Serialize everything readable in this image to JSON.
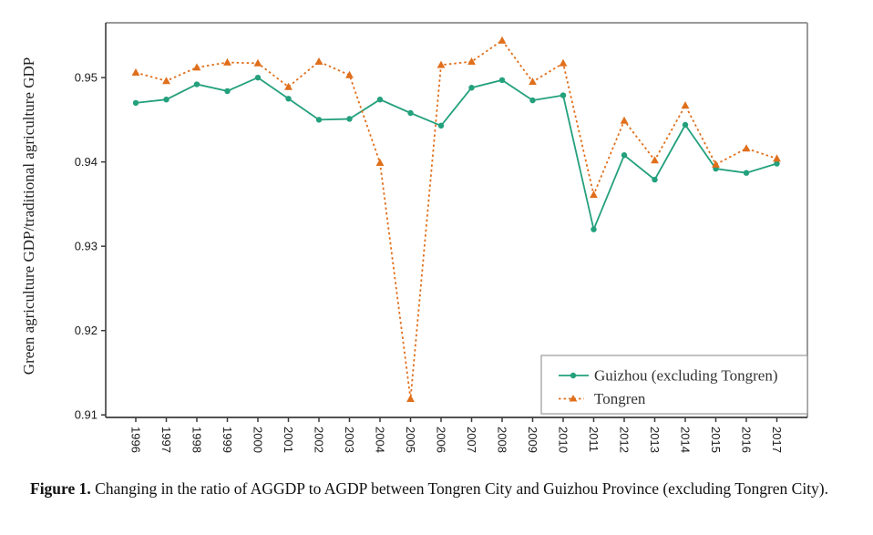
{
  "figure": {
    "caption": {
      "label": "Figure 1.",
      "text": "Changing in the ratio of AGGDP to AGDP between Tongren City and Guizhou Province (excluding Tongren City)."
    }
  },
  "chart_data": {
    "type": "line",
    "title": "",
    "xlabel": "",
    "ylabel": "Green agriculture GDP/traditional agriculture GDP",
    "x": [
      1996,
      1997,
      1998,
      1999,
      2000,
      2001,
      2002,
      2003,
      2004,
      2005,
      2006,
      2007,
      2008,
      2009,
      2010,
      2011,
      2012,
      2013,
      2014,
      2015,
      2016,
      2017
    ],
    "series": [
      {
        "name": "Guizhou (excluding Tongren)",
        "color": "#23a07c",
        "marker": "circle",
        "line_style": "solid",
        "values": [
          0.947,
          0.9474,
          0.9492,
          0.9484,
          0.95,
          0.9475,
          0.945,
          0.9451,
          0.9474,
          0.9458,
          0.9443,
          0.9488,
          0.9497,
          0.9473,
          0.9479,
          0.932,
          0.9408,
          0.9379,
          0.9444,
          0.9392,
          0.9387,
          0.9398
        ]
      },
      {
        "name": "Tongren",
        "color": "#e06f1c",
        "marker": "triangle",
        "line_style": "dashed",
        "values": [
          0.9506,
          0.9496,
          0.9512,
          0.9518,
          0.9517,
          0.9489,
          0.9519,
          0.9503,
          0.9399,
          0.9119,
          0.9515,
          0.9519,
          0.9544,
          0.9495,
          0.9517,
          0.9361,
          0.9449,
          0.9402,
          0.9467,
          0.9397,
          0.9416,
          0.9404
        ]
      }
    ],
    "ylim": [
      0.9097,
      0.9565
    ],
    "yticks": [
      0.91,
      0.92,
      0.93,
      0.94,
      0.95
    ],
    "grid": false,
    "legend_position": "bottom-right",
    "axis_colors": {
      "primary": "#3c3c3c",
      "secondary": "#9a9a9a"
    }
  }
}
